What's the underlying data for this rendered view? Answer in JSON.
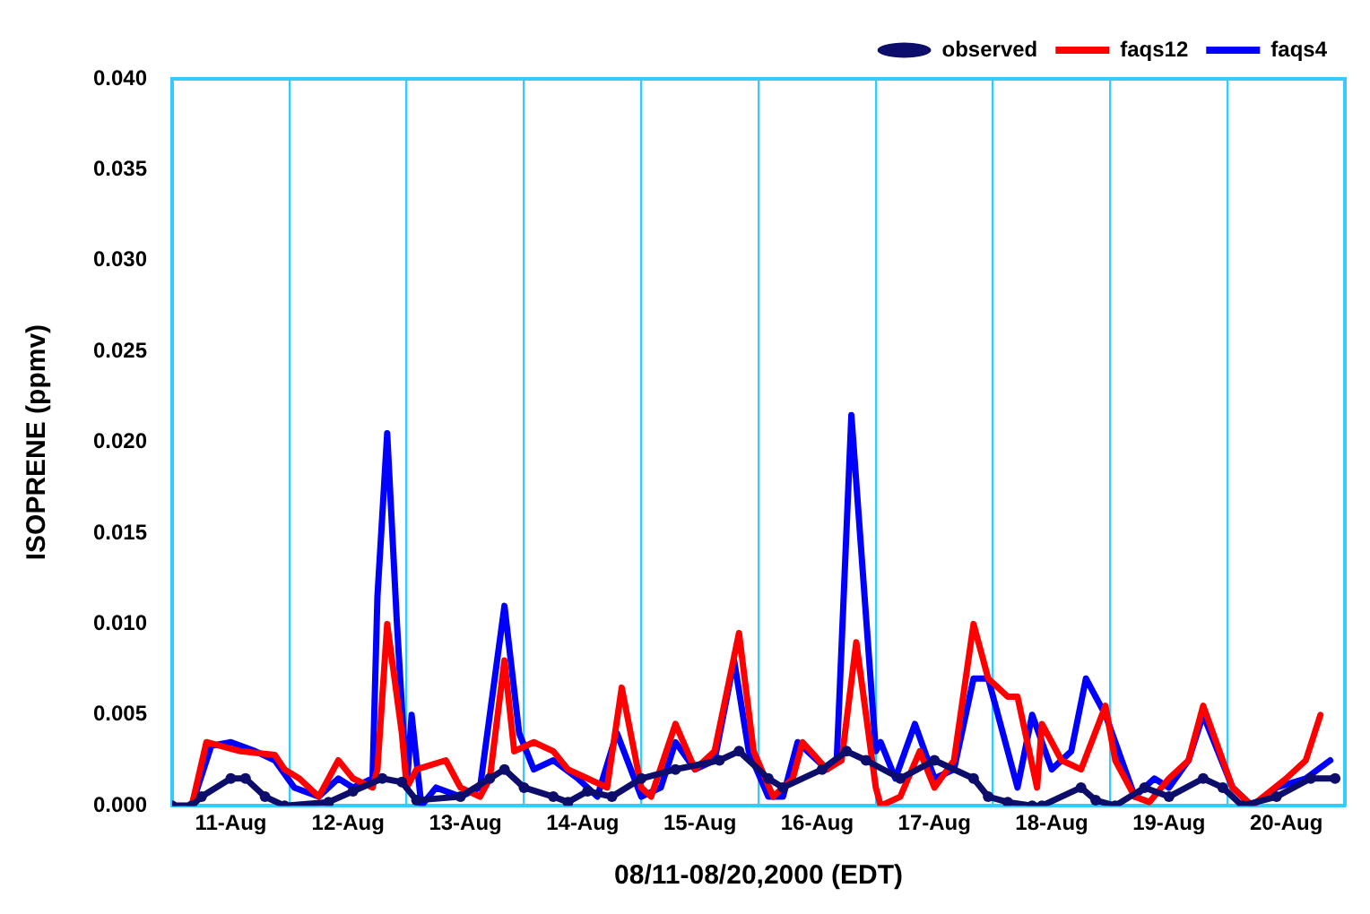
{
  "chart_data": {
    "type": "line",
    "xlabel": "08/11-08/20,2000 (EDT)",
    "ylabel": "ISOPRENE (ppmv)",
    "xlim": [
      "2000-08-11",
      "2000-08-21"
    ],
    "xticks": [
      {
        "value": "2000-08-11",
        "label": null
      },
      {
        "value": "2000-08-11T12:00",
        "label": "11-Aug"
      },
      {
        "value": "2000-08-12",
        "label": null
      },
      {
        "value": "2000-08-12T12:00",
        "label": "12-Aug"
      },
      {
        "value": "2000-08-13",
        "label": null
      },
      {
        "value": "2000-08-13T12:00",
        "label": "13-Aug"
      },
      {
        "value": "2000-08-14",
        "label": null
      },
      {
        "value": "2000-08-14T12:00",
        "label": "14-Aug"
      },
      {
        "value": "2000-08-15",
        "label": null
      },
      {
        "value": "2000-08-15T12:00",
        "label": "15-Aug"
      },
      {
        "value": "2000-08-16",
        "label": null
      },
      {
        "value": "2000-08-16T12:00",
        "label": "16-Aug"
      },
      {
        "value": "2000-08-17",
        "label": null
      },
      {
        "value": "2000-08-17T12:00",
        "label": "17-Aug"
      },
      {
        "value": "2000-08-18",
        "label": null
      },
      {
        "value": "2000-08-18T12:00",
        "label": "18-Aug"
      },
      {
        "value": "2000-08-19",
        "label": null
      },
      {
        "value": "2000-08-19T12:00",
        "label": "19-Aug"
      },
      {
        "value": "2000-08-20",
        "label": null
      },
      {
        "value": "2000-08-20T12:00",
        "label": "20-Aug"
      },
      {
        "value": "2000-08-21",
        "label": null
      }
    ],
    "ylim": [
      0,
      0.04
    ],
    "yticks": [
      {
        "value": 0,
        "label": "0.000"
      },
      {
        "value": 0.005,
        "label": "0.005"
      },
      {
        "value": 0.01,
        "label": "0.010"
      },
      {
        "value": 0.015,
        "label": "0.015"
      },
      {
        "value": 0.02,
        "label": "0.020"
      },
      {
        "value": 0.025,
        "label": "0.025"
      },
      {
        "value": 0.03,
        "label": "0.030"
      },
      {
        "value": 0.035,
        "label": "0.035"
      },
      {
        "value": 0.04,
        "label": "0.040"
      }
    ],
    "grid": "x",
    "legend": "top right",
    "series": [
      {
        "name": "observed",
        "color": "#0d0d6b",
        "marker": "circle",
        "x": [
          "2000-08-11T00:00",
          "2000-08-11T04:00",
          "2000-08-11T06:00",
          "2000-08-11T12:00",
          "2000-08-11T15:00",
          "2000-08-11T19:00",
          "2000-08-11T23:00",
          "2000-08-12T08:00",
          "2000-08-12T13:00",
          "2000-08-12T19:00",
          "2000-08-12T23:00",
          "2000-08-13T02:00",
          "2000-08-13T11:00",
          "2000-08-13T17:00",
          "2000-08-13T20:00",
          "2000-08-14T00:00",
          "2000-08-14T06:00",
          "2000-08-14T09:00",
          "2000-08-14T13:00",
          "2000-08-14T18:00",
          "2000-08-15T00:00",
          "2000-08-15T07:00",
          "2000-08-15T16:00",
          "2000-08-15T20:00",
          "2000-08-16T02:00",
          "2000-08-16T05:00",
          "2000-08-16T13:00",
          "2000-08-16T18:00",
          "2000-08-16T22:00",
          "2000-08-17T05:00",
          "2000-08-17T12:00",
          "2000-08-17T20:00",
          "2000-08-17T23:00",
          "2000-08-18T03:00",
          "2000-08-18T08:00",
          "2000-08-18T10:00",
          "2000-08-18T18:00",
          "2000-08-18T21:00",
          "2000-08-19T01:00",
          "2000-08-19T07:00",
          "2000-08-19T12:00",
          "2000-08-19T19:00",
          "2000-08-19T23:00",
          "2000-08-20T03:00",
          "2000-08-20T10:00",
          "2000-08-20T17:00",
          "2000-08-20T22:00"
        ],
        "values": [
          0,
          0,
          0.0005,
          0.0015,
          0.0015,
          0.0005,
          0,
          0.0002,
          0.0008,
          0.0015,
          0.0013,
          0.0003,
          0.0005,
          0.0015,
          0.002,
          0.001,
          0.0005,
          0.0002,
          0.0008,
          0.0005,
          0.0015,
          0.002,
          0.0025,
          0.003,
          0.0015,
          0.001,
          0.002,
          0.003,
          0.0025,
          0.0015,
          0.0025,
          0.0015,
          0.0005,
          0.0002,
          0,
          0,
          0.001,
          0.0003,
          0,
          0.001,
          0.0005,
          0.0015,
          0.001,
          0,
          0.0005,
          0.0015,
          0.0015
        ]
      },
      {
        "name": "faqs12",
        "color": "#ff0000",
        "marker": "none",
        "x": [
          "2000-08-11T00:00",
          "2000-08-11T04:00",
          "2000-08-11T07:00",
          "2000-08-11T14:00",
          "2000-08-11T21:00",
          "2000-08-11T23:00",
          "2000-08-12T02:00",
          "2000-08-12T06:00",
          "2000-08-12T10:00",
          "2000-08-12T13:00",
          "2000-08-12T17:00",
          "2000-08-12T18:00",
          "2000-08-12T20:00",
          "2000-08-12T23:00",
          "2000-08-13T00:00",
          "2000-08-13T02:00",
          "2000-08-13T08:00",
          "2000-08-13T11:00",
          "2000-08-13T15:00",
          "2000-08-13T17:00",
          "2000-08-13T20:00",
          "2000-08-13T22:00",
          "2000-08-14T02:00",
          "2000-08-14T06:00",
          "2000-08-14T09:00",
          "2000-08-14T13:00",
          "2000-08-14T17:00",
          "2000-08-14T20:00",
          "2000-08-15T00:00",
          "2000-08-15T02:00",
          "2000-08-15T07:00",
          "2000-08-15T11:00",
          "2000-08-15T15:00",
          "2000-08-15T20:00",
          "2000-08-15T23:00",
          "2000-08-16T03:00",
          "2000-08-16T07:00",
          "2000-08-16T09:00",
          "2000-08-16T14:00",
          "2000-08-16T17:00",
          "2000-08-16T20:00",
          "2000-08-17T00:00",
          "2000-08-17T01:00",
          "2000-08-17T05:00",
          "2000-08-17T09:00",
          "2000-08-17T12:00",
          "2000-08-17T16:00",
          "2000-08-17T20:00",
          "2000-08-17T23:00",
          "2000-08-18T03:00",
          "2000-08-18T05:00",
          "2000-08-18T09:00",
          "2000-08-18T10:00",
          "2000-08-18T14:00",
          "2000-08-18T18:00",
          "2000-08-18T23:00",
          "2000-08-19T01:00",
          "2000-08-19T05:00",
          "2000-08-19T08:00",
          "2000-08-19T12:00",
          "2000-08-19T16:00",
          "2000-08-19T19:00",
          "2000-08-20T01:00",
          "2000-08-20T05:00",
          "2000-08-20T12:00",
          "2000-08-20T16:00",
          "2000-08-20T19:00"
        ],
        "values": [
          0,
          0,
          0.0035,
          0.003,
          0.0028,
          0.002,
          0.0015,
          0.0005,
          0.0025,
          0.0015,
          0.001,
          0.002,
          0.01,
          0.004,
          0.001,
          0.002,
          0.0025,
          0.001,
          0.0005,
          0.0015,
          0.008,
          0.003,
          0.0035,
          0.003,
          0.002,
          0.0015,
          0.001,
          0.0065,
          0.001,
          0.0005,
          0.0045,
          0.002,
          0.003,
          0.0095,
          0.003,
          0.0005,
          0.0015,
          0.0035,
          0.002,
          0.0025,
          0.009,
          0.001,
          0,
          0.0005,
          0.003,
          0.001,
          0.0025,
          0.01,
          0.007,
          0.006,
          0.006,
          0.001,
          0.0045,
          0.0025,
          0.002,
          0.0055,
          0.0025,
          0.0005,
          0.0002,
          0.0015,
          0.0025,
          0.0055,
          0.001,
          0,
          0.0015,
          0.0025,
          0.005
        ]
      },
      {
        "name": "faqs4",
        "color": "#0000ff",
        "marker": "none",
        "x": [
          "2000-08-11T00:00",
          "2000-08-11T04:00",
          "2000-08-11T08:00",
          "2000-08-11T12:00",
          "2000-08-11T17:00",
          "2000-08-11T21:00",
          "2000-08-12T01:00",
          "2000-08-12T06:00",
          "2000-08-12T10:00",
          "2000-08-12T13:00",
          "2000-08-12T17:00",
          "2000-08-12T18:00",
          "2000-08-12T20:00",
          "2000-08-12T22:00",
          "2000-08-13T00:00",
          "2000-08-13T01:00",
          "2000-08-13T03:00",
          "2000-08-13T06:00",
          "2000-08-13T11:00",
          "2000-08-13T15:00",
          "2000-08-13T20:00",
          "2000-08-13T23:00",
          "2000-08-14T02:00",
          "2000-08-14T06:00",
          "2000-08-14T11:00",
          "2000-08-14T15:00",
          "2000-08-14T19:00",
          "2000-08-15T00:00",
          "2000-08-15T04:00",
          "2000-08-15T07:00",
          "2000-08-15T11:00",
          "2000-08-15T15:00",
          "2000-08-15T19:00",
          "2000-08-15T22:00",
          "2000-08-16T02:00",
          "2000-08-16T05:00",
          "2000-08-16T08:00",
          "2000-08-16T14:00",
          "2000-08-16T16:00",
          "2000-08-16T19:00",
          "2000-08-17T00:00",
          "2000-08-17T01:00",
          "2000-08-17T04:00",
          "2000-08-17T08:00",
          "2000-08-17T12:00",
          "2000-08-17T16:00",
          "2000-08-17T20:00",
          "2000-08-17T23:00",
          "2000-08-18T05:00",
          "2000-08-18T08:00",
          "2000-08-18T12:00",
          "2000-08-18T16:00",
          "2000-08-18T19:00",
          "2000-08-18T23:00",
          "2000-08-19T05:00",
          "2000-08-19T09:00",
          "2000-08-19T12:00",
          "2000-08-19T16:00",
          "2000-08-19T19:00",
          "2000-08-20T01:00",
          "2000-08-20T05:00",
          "2000-08-20T10:00",
          "2000-08-20T16:00",
          "2000-08-20T21:00"
        ],
        "values": [
          0,
          0,
          0.0033,
          0.0035,
          0.003,
          0.0025,
          0.001,
          0.0005,
          0.0015,
          0.001,
          0.0015,
          0.0115,
          0.0205,
          0.01,
          0.001,
          0.005,
          0,
          0.001,
          0.0005,
          0.001,
          0.011,
          0.004,
          0.002,
          0.0025,
          0.0015,
          0.0005,
          0.004,
          0.0005,
          0.001,
          0.0035,
          0.002,
          0.0025,
          0.008,
          0.003,
          0.0005,
          0.0005,
          0.0035,
          0.002,
          0.0025,
          0.0215,
          0.003,
          0.0035,
          0.0015,
          0.0045,
          0.0015,
          0.002,
          0.007,
          0.007,
          0.001,
          0.005,
          0.002,
          0.003,
          0.007,
          0.005,
          0.0005,
          0.0015,
          0.001,
          0.0025,
          0.005,
          0.001,
          0,
          0.001,
          0.0015,
          0.0025
        ]
      }
    ]
  }
}
